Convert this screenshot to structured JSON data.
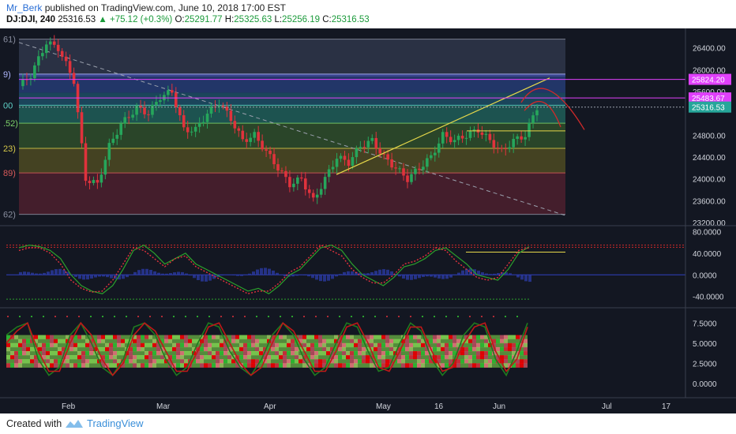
{
  "header": {
    "author": "Mr_Berk",
    "published": "published on TradingView.com, June 10, 2018 17:00 EST",
    "symbol": "DJ:DJI, 240",
    "last": "25316.53",
    "change": "+75.12 (+0.3%)",
    "open_label": "O:",
    "open": "25291.77",
    "high_label": "H:",
    "high": "25325.63",
    "low_label": "L:",
    "low": "25256.19",
    "close_label": "C:",
    "close": "25316.53"
  },
  "footer": {
    "created_with": "Created with",
    "brand": "TradingView"
  },
  "colors": {
    "up": "#26a65b",
    "down": "#e0323c",
    "bg": "#131722",
    "axis": "#d1d4dc"
  },
  "chart_data": [
    {
      "type": "candlestick",
      "title": "DJ:DJI, 240",
      "ylim": [
        23200,
        26700
      ],
      "y_ticks": [
        "26400.00",
        "26000.00",
        "25600.00",
        "24800.00",
        "24400.00",
        "24000.00",
        "23600.00",
        "23200.00"
      ],
      "price_labels": [
        {
          "text": "25824.20",
          "color": "#e040fb"
        },
        {
          "text": "25483.67",
          "color": "#e040fb"
        },
        {
          "text": "25316.53",
          "color": "#26a69a"
        }
      ],
      "fib_level_labels": [
        "61)",
        "9)",
        "00",
        ".52)",
        "23)",
        "89)",
        "62)"
      ],
      "x_ticks": [
        "Feb",
        "Mar",
        "Apr",
        "May",
        "16",
        "Jun",
        "Jul",
        "17"
      ],
      "close_path": [
        [
          0,
          25700
        ],
        [
          3,
          25900
        ],
        [
          7,
          26500
        ],
        [
          10,
          26400
        ],
        [
          14,
          25800
        ],
        [
          17,
          24000
        ],
        [
          20,
          23900
        ],
        [
          23,
          24600
        ],
        [
          26,
          25000
        ],
        [
          30,
          25300
        ],
        [
          33,
          25200
        ],
        [
          36,
          25500
        ],
        [
          39,
          25600
        ],
        [
          42,
          24900
        ],
        [
          45,
          24900
        ],
        [
          48,
          25200
        ],
        [
          51,
          25400
        ],
        [
          54,
          25100
        ],
        [
          57,
          24700
        ],
        [
          60,
          24800
        ],
        [
          63,
          24500
        ],
        [
          66,
          24200
        ],
        [
          69,
          23900
        ],
        [
          72,
          24000
        ],
        [
          75,
          23600
        ],
        [
          78,
          24000
        ],
        [
          81,
          24400
        ],
        [
          84,
          24300
        ],
        [
          87,
          24600
        ],
        [
          90,
          24700
        ],
        [
          93,
          24400
        ],
        [
          96,
          24200
        ],
        [
          99,
          24000
        ],
        [
          102,
          24200
        ],
        [
          105,
          24400
        ],
        [
          108,
          24800
        ],
        [
          111,
          24700
        ],
        [
          114,
          24800
        ],
        [
          117,
          24900
        ],
        [
          120,
          24700
        ],
        [
          123,
          24500
        ],
        [
          126,
          24700
        ],
        [
          129,
          24800
        ],
        [
          132,
          25316
        ]
      ]
    },
    {
      "type": "line",
      "title": "oscillator",
      "ylim": [
        -55,
        85
      ],
      "y_ticks": [
        "80.0000",
        "40.0000",
        "0.0000",
        "-40.0000"
      ],
      "series": [
        {
          "values": [
            50,
            55,
            52,
            45,
            30,
            0,
            -20,
            -30,
            -35,
            -20,
            10,
            45,
            55,
            40,
            20,
            30,
            40,
            20,
            10,
            0,
            -10,
            -20,
            -30,
            -25,
            -35,
            -20,
            0,
            10,
            30,
            50,
            55,
            45,
            20,
            0,
            -10,
            -20,
            -5,
            15,
            20,
            30,
            45,
            50,
            35,
            20,
            0,
            -5,
            -10,
            10,
            40,
            52
          ]
        },
        {
          "values": [
            45,
            50,
            50,
            40,
            20,
            -10,
            -25,
            -32,
            -30,
            -10,
            20,
            50,
            45,
            30,
            15,
            30,
            35,
            15,
            5,
            -5,
            -15,
            -25,
            -35,
            -30,
            -30,
            -15,
            5,
            15,
            35,
            55,
            45,
            35,
            10,
            -5,
            -15,
            -15,
            0,
            20,
            25,
            35,
            50,
            45,
            25,
            10,
            -5,
            -10,
            -5,
            20,
            45,
            50
          ]
        }
      ]
    },
    {
      "type": "line",
      "title": "stochastic",
      "ylim": [
        -1,
        9
      ],
      "y_ticks": [
        "7.5000",
        "5.0000",
        "2.5000",
        "0.0000"
      ],
      "series": [
        {
          "values": [
            6,
            7,
            7.5,
            3,
            1,
            2,
            6,
            7.5,
            5,
            2,
            1,
            3,
            7,
            7.5,
            6,
            3,
            1,
            2,
            5,
            7.5,
            7,
            4,
            2,
            1,
            3,
            6,
            7.5,
            6,
            3,
            1,
            2,
            5,
            7.5,
            7,
            4,
            1.5,
            2,
            5,
            7.5,
            6.5,
            3,
            1,
            2.5,
            6,
            7.5,
            7,
            3,
            1,
            4,
            7.5
          ]
        },
        {
          "values": [
            5,
            6.5,
            7.5,
            4,
            1.5,
            1.5,
            5,
            7.5,
            6,
            3,
            1,
            2.5,
            6,
            7.5,
            6.5,
            4,
            1.5,
            1.5,
            4,
            7,
            7.5,
            5,
            2.5,
            1,
            2,
            5,
            7.5,
            6.5,
            4,
            1.5,
            1.5,
            4,
            7,
            7.5,
            5,
            2,
            1.5,
            4,
            7,
            7,
            4,
            1.5,
            2,
            5,
            7,
            7.5,
            4,
            1.5,
            3,
            7
          ]
        }
      ]
    }
  ]
}
